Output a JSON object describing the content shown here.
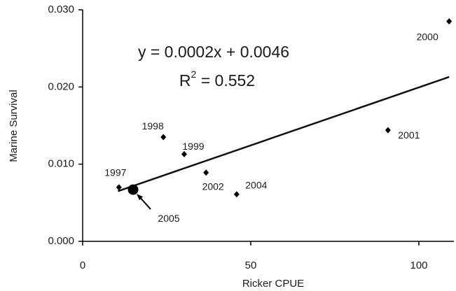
{
  "chart_data": {
    "type": "scatter",
    "x_label": "Ricker CPUE",
    "y_label": "Marine Survival",
    "labels": [
      "1997",
      "1998",
      "1999",
      "2002",
      "2004",
      "2000",
      "2001",
      "2005"
    ],
    "x": [
      10.8,
      24.0,
      30.2,
      36.7,
      45.8,
      109,
      90.8,
      15.0
    ],
    "values": [
      0.007,
      0.0135,
      0.0113,
      0.0089,
      0.0061,
      0.0285,
      0.0144,
      0.0067
    ],
    "markers": [
      "diamond",
      "diamond",
      "diamond",
      "diamond",
      "diamond",
      "diamond",
      "diamond",
      "circle"
    ],
    "color": "#000000",
    "trend_line": {
      "x": [
        10.5,
        109
      ],
      "y": [
        0.0065,
        0.0213
      ]
    },
    "equation": "y = 0.0002x + 0.0046",
    "r_squared": [
      "R",
      "2",
      " = 0.552"
    ],
    "xlim": [
      0,
      110
    ],
    "xticks": [
      0,
      50,
      100
    ],
    "ylim": [
      0,
      0.03
    ],
    "yticks": [
      {
        "value": 0,
        "label": "0.000"
      },
      {
        "value": 0.01,
        "label": "0.010"
      },
      {
        "value": 0.02,
        "label": "0.020"
      },
      {
        "value": 0.03,
        "label": "0.030"
      }
    ],
    "grid": false
  }
}
